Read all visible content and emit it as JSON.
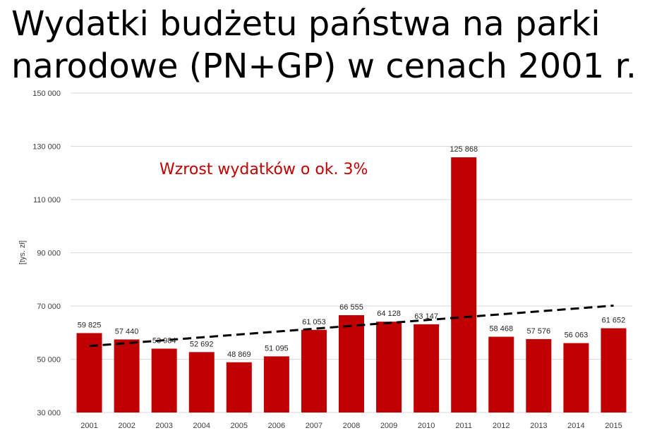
{
  "chart_data": {
    "type": "bar",
    "title": "Wydatki budżetu państwa na parki narodowe (PN+GP) w cenach 2001 r.",
    "ylabel": "[tys. zł]",
    "xlabel": "",
    "categories": [
      "2001",
      "2002",
      "2003",
      "2004",
      "2005",
      "2006",
      "2007",
      "2008",
      "2009",
      "2010",
      "2011",
      "2012",
      "2013",
      "2014",
      "2015"
    ],
    "values": [
      59825,
      57440,
      53984,
      52692,
      48869,
      51095,
      61053,
      66555,
      64128,
      63147,
      125868,
      58468,
      57576,
      56063,
      61652
    ],
    "value_labels": [
      "59 825",
      "57 440",
      "53 984",
      "52 692",
      "48 869",
      "51 095",
      "61 053",
      "66 555",
      "64 128",
      "63 147",
      "125 868",
      "58 468",
      "57 576",
      "56 063",
      "61 652"
    ],
    "ylim": [
      30000,
      150000
    ],
    "yticks": [
      30000,
      50000,
      70000,
      90000,
      110000,
      130000,
      150000
    ],
    "ytick_labels": [
      "30 000",
      "50 000",
      "70 000",
      "90 000",
      "110 000",
      "130 000",
      "150 000"
    ],
    "trendline": {
      "type": "linear",
      "style": "dashed",
      "color": "#000000"
    },
    "annotation": "Wzrost wydatków o ok. 3%",
    "grid": true,
    "bar_color": "#c00000"
  }
}
